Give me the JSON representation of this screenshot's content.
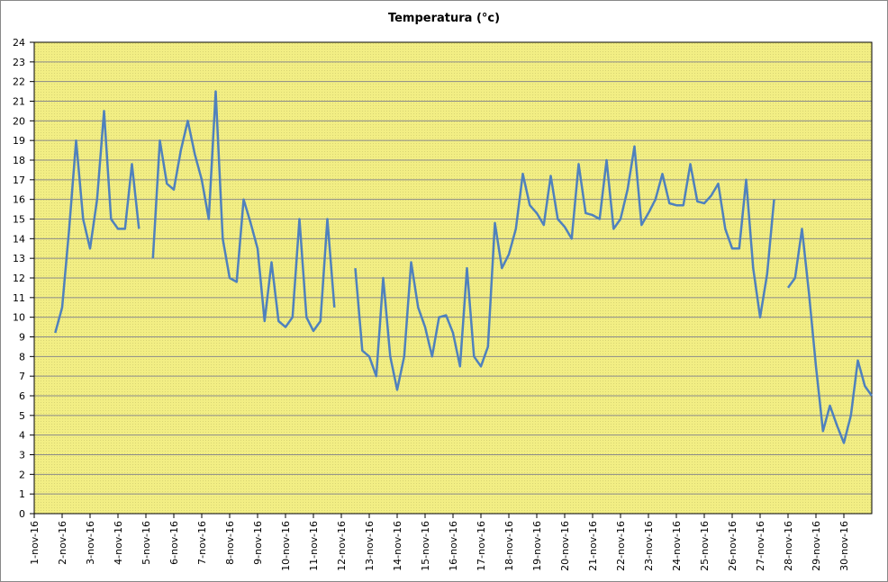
{
  "chart_data": {
    "type": "line",
    "title": "Temperatura (°c)",
    "x": [
      0.75,
      1,
      1.25,
      1.5,
      1.75,
      2,
      2.25,
      2.5,
      2.75,
      3,
      3.25,
      3.5,
      3.75,
      4,
      4.25,
      4.5,
      4.75,
      5,
      5.25,
      5.5,
      5.75,
      6,
      6.25,
      6.5,
      6.75,
      7,
      7.25,
      7.5,
      7.75,
      8,
      8.25,
      8.5,
      8.75,
      9,
      9.25,
      9.5,
      9.75,
      10,
      10.25,
      10.5,
      10.75,
      11,
      11.25,
      11.5,
      11.75,
      12,
      12.25,
      12.5,
      12.75,
      13,
      13.25,
      13.5,
      13.75,
      14,
      14.25,
      14.5,
      14.75,
      15,
      15.25,
      15.5,
      15.75,
      16,
      16.25,
      16.5,
      16.75,
      17,
      17.25,
      17.5,
      17.75,
      18,
      18.25,
      18.5,
      18.75,
      19,
      19.25,
      19.5,
      19.75,
      20,
      20.25,
      20.5,
      20.75,
      21,
      21.25,
      21.5,
      21.75,
      22,
      22.25,
      22.5,
      22.75,
      23,
      23.25,
      23.5,
      23.75,
      24,
      24.25,
      24.5,
      24.75,
      25,
      25.25,
      25.5,
      25.75,
      26,
      26.25,
      26.5,
      26.75,
      27,
      27.25,
      27.5,
      27.75,
      28,
      28.25,
      28.5,
      28.75,
      29,
      29.25,
      29.5,
      29.75,
      30
    ],
    "series": [
      {
        "color": "#4f81bd",
        "values": [
          9.2,
          10.5,
          14.5,
          19,
          15,
          13.5,
          16,
          20.5,
          15,
          14.5,
          14.5,
          17.8,
          14.5,
          null,
          13,
          19,
          16.8,
          16.5,
          18.5,
          20,
          18.3,
          17,
          15,
          21.5,
          14,
          12,
          11.8,
          16,
          14.8,
          13.5,
          9.8,
          12.8,
          9.8,
          9.5,
          10,
          15,
          10,
          9.3,
          9.8,
          15,
          10.5,
          null,
          null,
          12.5,
          8.3,
          8,
          7,
          12,
          8,
          6.3,
          8,
          12.8,
          10.5,
          9.5,
          8,
          10,
          10.1,
          9.2,
          7.5,
          12.5,
          8,
          7.5,
          8.5,
          14.8,
          12.5,
          13.2,
          14.5,
          17.3,
          15.7,
          15.3,
          14.7,
          17.2,
          15,
          14.6,
          14,
          17.8,
          15.3,
          15.2,
          15,
          18,
          14.5,
          15,
          16.5,
          18.7,
          14.7,
          15.3,
          16,
          17.3,
          15.8,
          15.7,
          15.7,
          17.8,
          15.9,
          15.8,
          16.2,
          16.8,
          14.5,
          13.5,
          13.5,
          17,
          12.5,
          10,
          12.2,
          16,
          null,
          11.5,
          12,
          14.5,
          11.2,
          7.5,
          4.2,
          5.5,
          4.5,
          3.6,
          5,
          7.8,
          6.5,
          6
        ]
      }
    ],
    "xlim": [
      0,
      30
    ],
    "xticks": [
      {
        "value": 0,
        "label": "1-nov-16"
      },
      {
        "value": 1,
        "label": "2-nov-16"
      },
      {
        "value": 2,
        "label": "3-nov-16"
      },
      {
        "value": 3,
        "label": "4-nov-16"
      },
      {
        "value": 4,
        "label": "5-nov-16"
      },
      {
        "value": 5,
        "label": "6-nov-16"
      },
      {
        "value": 6,
        "label": "7-nov-16"
      },
      {
        "value": 7,
        "label": "8-nov-16"
      },
      {
        "value": 8,
        "label": "9-nov-16"
      },
      {
        "value": 9,
        "label": "10-nov-16"
      },
      {
        "value": 10,
        "label": "11-nov-16"
      },
      {
        "value": 11,
        "label": "12-nov-16"
      },
      {
        "value": 12,
        "label": "13-nov-16"
      },
      {
        "value": 13,
        "label": "14-nov-16"
      },
      {
        "value": 14,
        "label": "15-nov-16"
      },
      {
        "value": 15,
        "label": "16-nov-16"
      },
      {
        "value": 16,
        "label": "17-nov-16"
      },
      {
        "value": 17,
        "label": "18-nov-16"
      },
      {
        "value": 18,
        "label": "19-nov-16"
      },
      {
        "value": 19,
        "label": "20-nov-16"
      },
      {
        "value": 20,
        "label": "21-nov-16"
      },
      {
        "value": 21,
        "label": "22-nov-16"
      },
      {
        "value": 22,
        "label": "23-nov-16"
      },
      {
        "value": 23,
        "label": "24-nov-16"
      },
      {
        "value": 24,
        "label": "25-nov-16"
      },
      {
        "value": 25,
        "label": "26-nov-16"
      },
      {
        "value": 26,
        "label": "27-nov-16"
      },
      {
        "value": 27,
        "label": "28-nov-16"
      },
      {
        "value": 28,
        "label": "29-nov-16"
      },
      {
        "value": 29,
        "label": "30-nov-16"
      }
    ],
    "ylim": [
      0,
      24
    ],
    "yticks": [
      0,
      1,
      2,
      3,
      4,
      5,
      6,
      7,
      8,
      9,
      10,
      11,
      12,
      13,
      14,
      15,
      16,
      17,
      18,
      19,
      20,
      21,
      22,
      23,
      24
    ],
    "grid": true,
    "background": "#f2ee84"
  }
}
